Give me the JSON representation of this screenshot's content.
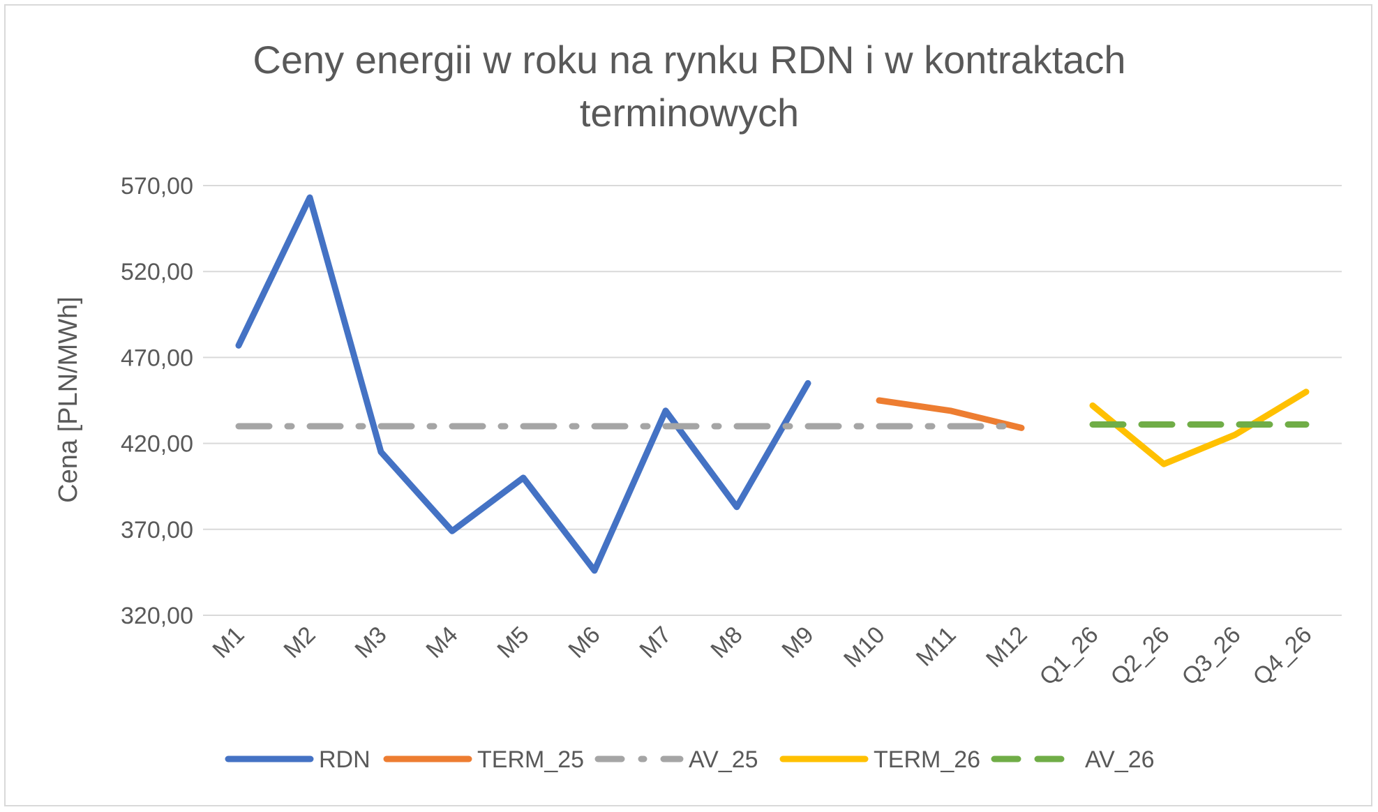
{
  "chart_data": {
    "type": "line",
    "title_line1": "Ceny energii w roku na rynku RDN i w kontraktach",
    "title_line2": "terminowych",
    "ylabel": "Cena [PLN/MWh]",
    "xlabel": "",
    "ylim": [
      320,
      570
    ],
    "yticks": [
      320,
      370,
      420,
      470,
      520,
      570
    ],
    "ytick_labels": [
      "320,00",
      "370,00",
      "420,00",
      "470,00",
      "520,00",
      "570,00"
    ],
    "grid": true,
    "legend_position": "bottom",
    "categories": [
      "M1",
      "M2",
      "M3",
      "M4",
      "M5",
      "M6",
      "M7",
      "M8",
      "M9",
      "M10",
      "M11",
      "M12",
      "Q1_26",
      "Q2_26",
      "Q3_26",
      "Q4_26"
    ],
    "series": [
      {
        "name": "RDN",
        "color": "#4472c4",
        "dash": "solid",
        "values": [
          477,
          563,
          415,
          369,
          400,
          346,
          439,
          383,
          455,
          null,
          null,
          null,
          null,
          null,
          null,
          null
        ]
      },
      {
        "name": "TERM_25",
        "color": "#ed7d31",
        "dash": "solid",
        "values": [
          null,
          null,
          null,
          null,
          null,
          null,
          null,
          null,
          null,
          445,
          439,
          429,
          null,
          null,
          null,
          null
        ]
      },
      {
        "name": "AV_25",
        "color": "#a5a5a5",
        "dash": "dashdot",
        "values": [
          430,
          430,
          430,
          430,
          430,
          430,
          430,
          430,
          430,
          430,
          430,
          430,
          null,
          null,
          null,
          null
        ]
      },
      {
        "name": "TERM_26",
        "color": "#ffc000",
        "dash": "solid",
        "values": [
          null,
          null,
          null,
          null,
          null,
          null,
          null,
          null,
          null,
          null,
          null,
          null,
          442,
          408,
          425,
          450
        ]
      },
      {
        "name": "AV_26",
        "color": "#70ad47",
        "dash": "dash",
        "values": [
          null,
          null,
          null,
          null,
          null,
          null,
          null,
          null,
          null,
          null,
          null,
          null,
          431,
          431,
          431,
          431
        ]
      }
    ]
  }
}
